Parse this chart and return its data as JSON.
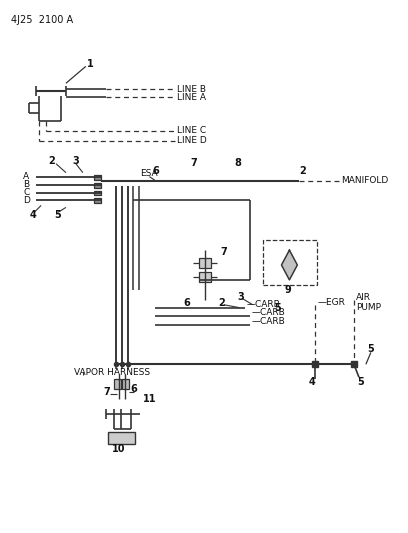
{
  "title": "4J25  2100 A",
  "bg_color": "#ffffff",
  "line_color": "#333333",
  "text_color": "#111111",
  "fig_width": 4.08,
  "fig_height": 5.33,
  "labels": {
    "title": "4J25  2100 A",
    "line_b": "LINE B",
    "line_a": "LINE A",
    "line_c": "LINE C",
    "line_d": "LINE D",
    "manifold": "MANIFOLD",
    "esa": "ESA",
    "carb1": "CARB",
    "carb2": "CARB",
    "carb3": "CARB",
    "egr": "EGR",
    "air_pump1": "AIR",
    "air_pump2": "PUMP",
    "vapor_harness": "VAPOR HARNESS",
    "num1": "1",
    "num2a": "2",
    "num2b": "2",
    "num2c": "2",
    "num3a": "3",
    "num3b": "3",
    "num4": "4",
    "num5a": "5",
    "num5b": "5",
    "num6a": "6",
    "num6b": "6",
    "num6c": "6",
    "num7a": "7",
    "num7b": "7",
    "num8": "8",
    "num9": "9",
    "num10": "10",
    "num11": "11",
    "letA": "A",
    "letB": "B",
    "letC": "C",
    "letD": "D"
  }
}
